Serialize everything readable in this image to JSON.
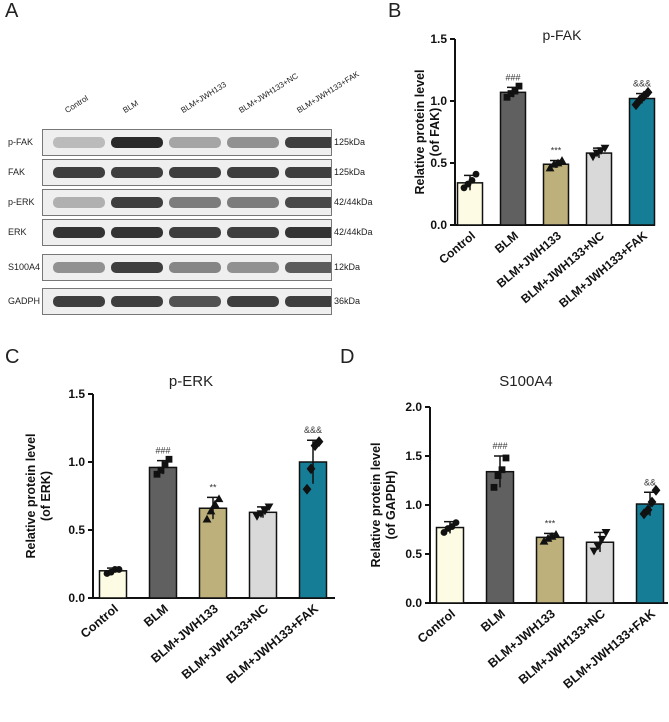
{
  "panel_letters": {
    "a": "A",
    "b": "B",
    "c": "C",
    "d": "D"
  },
  "blot": {
    "lanes": [
      "Control",
      "BLM",
      "BLM+JWH133",
      "BLM+JWH133+NC",
      "BLM+JWH133+FAK"
    ],
    "rows": [
      {
        "label": "p-FAK",
        "size": "125kDa",
        "intensity": [
          0.25,
          0.95,
          0.35,
          0.45,
          0.85
        ]
      },
      {
        "label": "FAK",
        "size": "125kDa",
        "intensity": [
          0.85,
          0.85,
          0.85,
          0.85,
          0.85
        ]
      },
      {
        "label": "p-ERK",
        "size": "42/44kDa",
        "intensity": [
          0.3,
          0.85,
          0.55,
          0.55,
          0.8
        ]
      },
      {
        "label": "ERK",
        "size": "42/44kDa",
        "intensity": [
          0.9,
          0.9,
          0.85,
          0.85,
          0.9
        ]
      },
      {
        "label": "S100A4",
        "size": "12kDa",
        "intensity": [
          0.45,
          0.85,
          0.5,
          0.45,
          0.7
        ]
      },
      {
        "label": "GADPH",
        "size": "36kDa",
        "intensity": [
          0.85,
          0.85,
          0.75,
          0.85,
          0.85
        ]
      }
    ]
  },
  "chart_data": [
    {
      "type": "bar",
      "title": "p-FAK",
      "ylabel": "Relative protein level\n(of  FAK)",
      "categories": [
        "Control",
        "BLM",
        "BLM+JWH133",
        "BLM+JWH133+NC",
        "BLM+JWH133+FAK"
      ],
      "values": [
        0.34,
        1.07,
        0.49,
        0.58,
        1.02
      ],
      "errors": [
        0.06,
        0.04,
        0.03,
        0.04,
        0.04
      ],
      "points": [
        [
          0.3,
          0.33,
          0.36,
          0.41
        ],
        [
          1.03,
          1.06,
          1.08,
          1.12
        ],
        [
          0.46,
          0.49,
          0.5,
          0.52
        ],
        [
          0.55,
          0.58,
          0.6,
          0.62
        ],
        [
          0.97,
          1.01,
          1.04,
          1.07
        ]
      ],
      "markers": [
        "circle",
        "square",
        "triangle",
        "triangle-down",
        "diamond"
      ],
      "colors": [
        "#fdfbe3",
        "#606060",
        "#bdb07a",
        "#d9d9d9",
        "#157d96"
      ],
      "annotations": [
        "",
        "###",
        "***",
        "",
        "&&&"
      ],
      "ylim": [
        0,
        1.5
      ],
      "yticks": [
        "0.0",
        "0.5",
        "1.0",
        "1.5"
      ]
    },
    {
      "type": "bar",
      "title": "p-ERK",
      "ylabel": "Relative protein level\n(of  ERK)",
      "categories": [
        "Control",
        "BLM",
        "BLM+JWH133",
        "BLM+JWH133+NC",
        "BLM+JWH133+FAK"
      ],
      "values": [
        0.2,
        0.96,
        0.66,
        0.63,
        1.0
      ],
      "errors": [
        0.02,
        0.05,
        0.08,
        0.04,
        0.16
      ],
      "points": [
        [
          0.18,
          0.19,
          0.21,
          0.21
        ],
        [
          0.91,
          0.94,
          0.98,
          1.02
        ],
        [
          0.58,
          0.64,
          0.69,
          0.73
        ],
        [
          0.6,
          0.62,
          0.64,
          0.67
        ],
        [
          0.8,
          0.95,
          1.12,
          1.15
        ]
      ],
      "markers": [
        "circle",
        "square",
        "triangle",
        "triangle-down",
        "diamond"
      ],
      "colors": [
        "#fdfbe3",
        "#606060",
        "#bdb07a",
        "#d9d9d9",
        "#157d96"
      ],
      "annotations": [
        "",
        "###",
        "**",
        "",
        "&&&"
      ],
      "ylim": [
        0,
        1.5
      ],
      "yticks": [
        "0.0",
        "0.5",
        "1.0",
        "1.5"
      ]
    },
    {
      "type": "bar",
      "title": "S100A4",
      "ylabel": "Relative protein level\n(of GAPDH)",
      "categories": [
        "Control",
        "BLM",
        "BLM+JWH133",
        "BLM+JWH133+NC",
        "BLM+JWH133+FAK"
      ],
      "values": [
        0.77,
        1.34,
        0.67,
        0.62,
        1.01
      ],
      "errors": [
        0.06,
        0.16,
        0.04,
        0.1,
        0.12
      ],
      "points": [
        [
          0.72,
          0.76,
          0.78,
          0.82
        ],
        [
          1.18,
          1.3,
          1.36,
          1.48
        ],
        [
          0.63,
          0.66,
          0.68,
          0.7
        ],
        [
          0.53,
          0.58,
          0.65,
          0.72
        ],
        [
          0.91,
          0.95,
          1.03,
          1.15
        ]
      ],
      "markers": [
        "circle",
        "square",
        "triangle",
        "triangle-down",
        "diamond"
      ],
      "colors": [
        "#fdfbe3",
        "#606060",
        "#bdb07a",
        "#d9d9d9",
        "#157d96"
      ],
      "annotations": [
        "",
        "###",
        "***",
        "",
        "&&"
      ],
      "ylim": [
        0,
        2.0
      ],
      "yticks": [
        "0.0",
        "0.5",
        "1.0",
        "1.5",
        "2.0"
      ]
    }
  ]
}
